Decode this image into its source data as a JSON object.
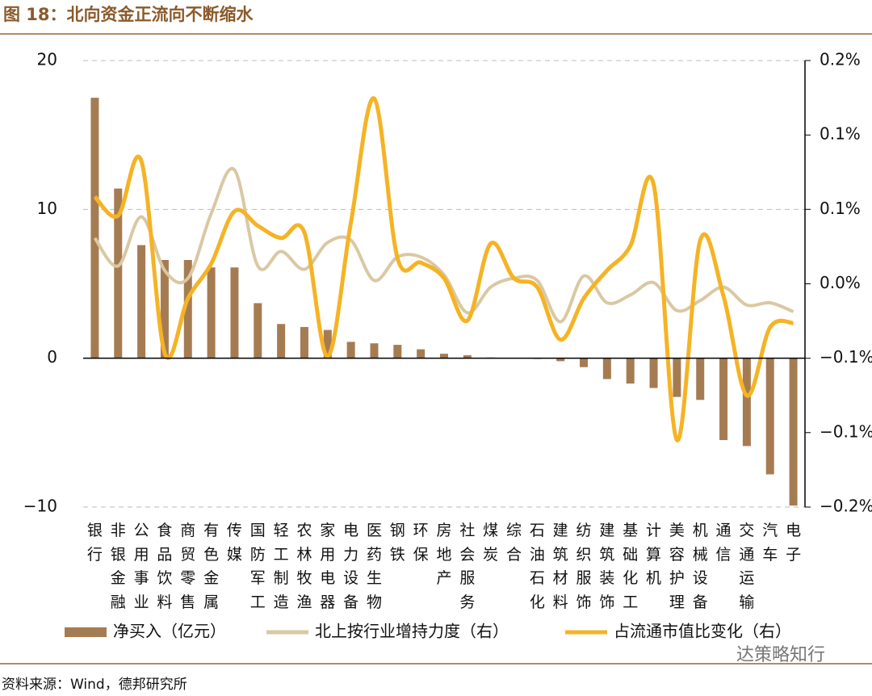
{
  "title": "图 18：北向资金正流向不断缩水",
  "source": "资料来源：Wind，德邦研究所",
  "watermark": "达策略知行",
  "chart_data": {
    "type": "bar-line",
    "categories": [
      "银行",
      "非银金融",
      "公用事业",
      "食品饮料",
      "商贸零售",
      "有色金属",
      "传媒",
      "国防军工",
      "轻工制造",
      "农林牧渔",
      "家用电器",
      "电力设备",
      "医药生物",
      "钢铁",
      "环保",
      "房地产",
      "社会服务",
      "煤炭",
      "综合",
      "石油石化",
      "建筑材料",
      "纺织服饰",
      "建筑装饰",
      "基础化工",
      "计算机",
      "美容护理",
      "机械设备",
      "通信",
      "交通运输",
      "汽车",
      "电子"
    ],
    "series": [
      {
        "name": "净买入（亿元）",
        "type": "bar",
        "color": "#a57c52",
        "values": [
          17.5,
          11.4,
          7.6,
          6.6,
          6.6,
          6.1,
          6.1,
          3.7,
          2.3,
          2.1,
          1.9,
          1.1,
          1.0,
          0.9,
          0.6,
          0.3,
          0.2,
          0.05,
          0,
          -0.05,
          -0.2,
          -0.6,
          -1.4,
          -1.7,
          -2.0,
          -2.6,
          -2.8,
          -5.5,
          -5.9,
          -7.8,
          -9.9
        ]
      },
      {
        "name": "北上按行业增持力度（右）",
        "type": "line",
        "axis": "y2",
        "color": "#d9c8a3",
        "values": [
          0.041,
          0.016,
          0.06,
          0.012,
          0.005,
          0.063,
          0.102,
          0.016,
          0.029,
          0.013,
          0.037,
          0.039,
          0.003,
          0.024,
          0.024,
          0.008,
          -0.026,
          -0.003,
          0.005,
          0.003,
          -0.034,
          0.007,
          -0.017,
          -0.01,
          0.001,
          -0.024,
          -0.015,
          -0.003,
          -0.019,
          -0.017,
          -0.025
        ]
      },
      {
        "name": "占流通市值比变化（右）",
        "type": "line",
        "axis": "y2",
        "color": "#f5b324",
        "values": [
          0.078,
          0.061,
          0.11,
          -0.062,
          -0.013,
          0.018,
          0.065,
          0.052,
          0.041,
          0.046,
          -0.065,
          0.055,
          0.166,
          0.023,
          0.019,
          0.005,
          -0.033,
          0.036,
          0.005,
          -0.003,
          -0.05,
          -0.013,
          0.012,
          0.034,
          0.089,
          -0.14,
          0.039,
          -0.011,
          -0.1,
          -0.039,
          -0.035
        ]
      }
    ],
    "ylim": [
      -10,
      20
    ],
    "yticks": [
      {
        "value": -10,
        "label": "−10"
      },
      0,
      10,
      20
    ],
    "y2lim": [
      -0.2,
      0.2
    ],
    "y2ticks": [
      {
        "value": -0.2,
        "label": "−0.2%"
      },
      {
        "value": -0.1333,
        "label": "−0.1%"
      },
      {
        "value": -0.0667,
        "label": "−0.1%"
      },
      {
        "value": 0,
        "label": "0.0%"
      },
      {
        "value": 0.0667,
        "label": "0.1%"
      },
      {
        "value": 0.1333,
        "label": "0.1%"
      },
      {
        "value": 0.2,
        "label": "0.2%"
      }
    ],
    "grid": true
  }
}
